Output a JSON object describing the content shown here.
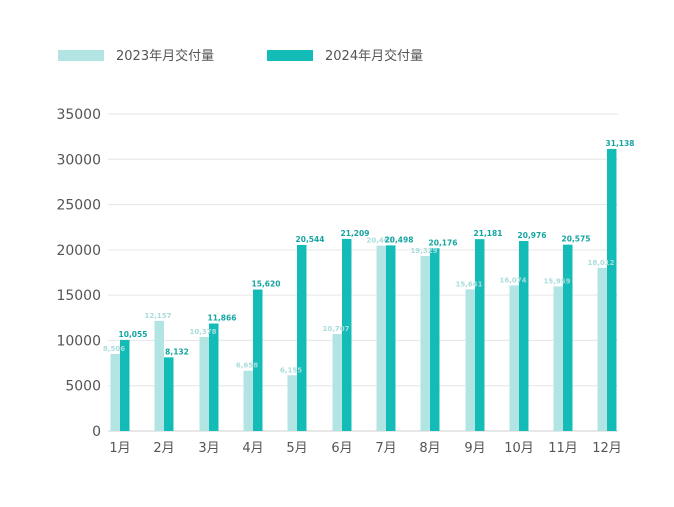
{
  "chart_data": {
    "type": "bar",
    "categories": [
      "1月",
      "2月",
      "3月",
      "4月",
      "5月",
      "6月",
      "7月",
      "8月",
      "9月",
      "10月",
      "11月",
      "12月"
    ],
    "series": [
      {
        "name": "2023年月交付量",
        "color": "#b2e4e4",
        "values": [
          8506,
          12157,
          10378,
          6658,
          6155,
          10707,
          20462,
          19329,
          15641,
          16074,
          15959,
          18012
        ],
        "labels": [
          "8,506",
          "12,157",
          "10,378",
          "6,658",
          "6,155",
          "10,707",
          "20,462",
          "19,329",
          "15,641",
          "16,074",
          "15,959",
          "18,012"
        ]
      },
      {
        "name": "2024年月交付量",
        "color": "#14bcb8",
        "values": [
          10055,
          8132,
          11866,
          15620,
          20544,
          21209,
          20498,
          20176,
          21181,
          20976,
          20575,
          31138
        ],
        "labels": [
          "10,055",
          "8,132",
          "11,866",
          "15,620",
          "20,544",
          "21,209",
          "20,498",
          "20,176",
          "21,181",
          "20,976",
          "20,575",
          "31,138"
        ]
      }
    ],
    "yticks": [
      "0",
      "5000",
      "10000",
      "15000",
      "20000",
      "25000",
      "30000",
      "35000"
    ],
    "ylim": [
      0,
      35000
    ],
    "grid": true,
    "legend_position": "top-left",
    "title": "",
    "xlabel": "",
    "ylabel": ""
  }
}
